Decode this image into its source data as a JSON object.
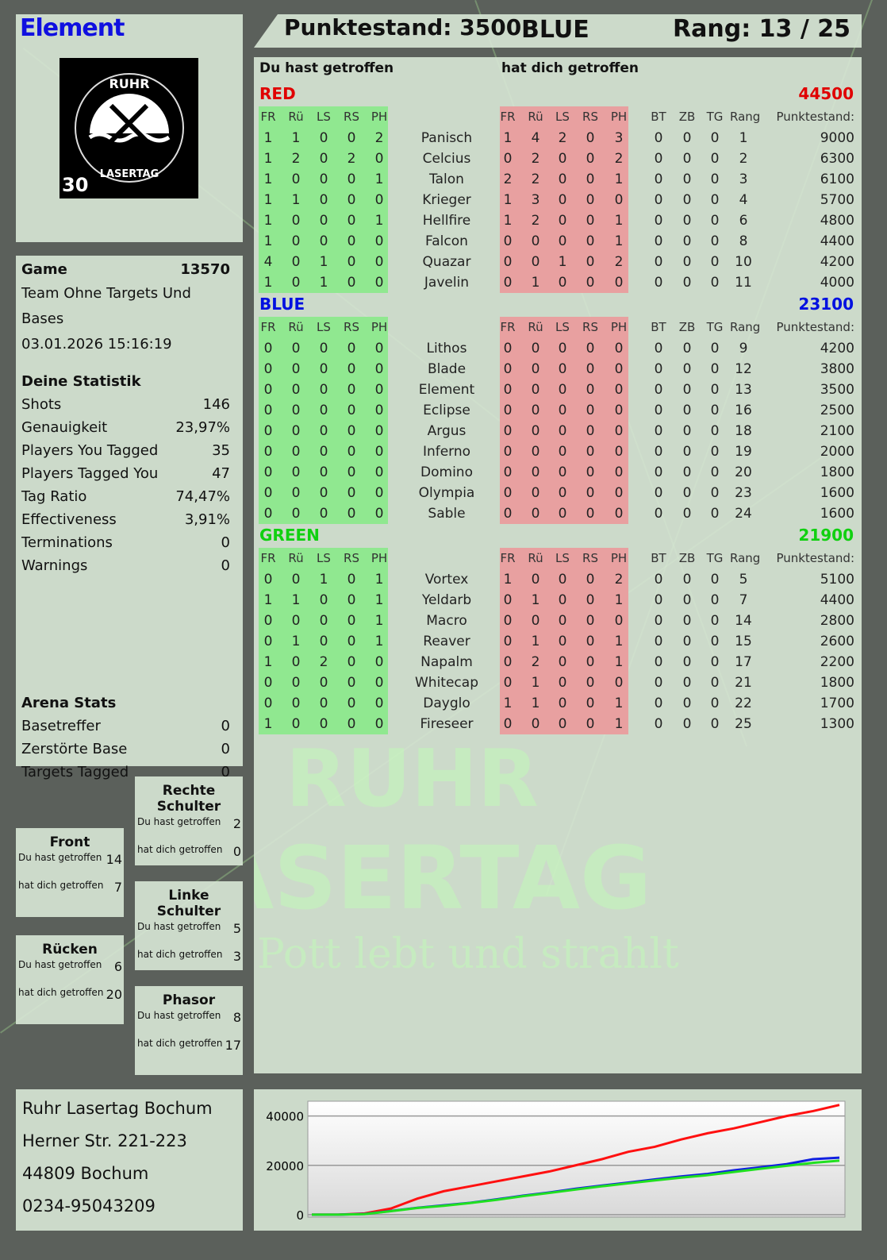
{
  "header": {
    "player_name": "Element",
    "score_label": "Punktestand: 3500",
    "team": "BLUE",
    "rank_label": "Rang: 13 / 25"
  },
  "logo": {
    "top_text": "RUHR",
    "bottom_text": "LASERTAG",
    "badge": "30"
  },
  "watermark": {
    "line1": "RUHR",
    "line2": "LASERTAG",
    "slogan": "Der Pott lebt und strahlt"
  },
  "game": {
    "label": "Game",
    "id": "13570",
    "mode": "Team Ohne Targets Und Bases",
    "datetime": "03.01.2026 15:16:19"
  },
  "stats": {
    "title": "Deine Statistik",
    "items": [
      [
        "Shots",
        "146"
      ],
      [
        "Genauigkeit",
        "23,97%"
      ],
      [
        "Players You Tagged",
        "35"
      ],
      [
        "Players Tagged You",
        "47"
      ],
      [
        "Tag Ratio",
        "74,47%"
      ],
      [
        "Effectiveness",
        "3,91%"
      ],
      [
        "Terminations",
        "0"
      ],
      [
        "Warnings",
        "0"
      ]
    ]
  },
  "arena": {
    "title": "Arena Stats",
    "items": [
      [
        "Basetreffer",
        "0"
      ],
      [
        "Zerstörte Base",
        "0"
      ],
      [
        "Targets Tagged",
        "0"
      ]
    ]
  },
  "zones": [
    {
      "title": "Rechte Schulter",
      "hit_label": "Du hast getroffen",
      "hit": "2",
      "got_label": "hat dich getroffen",
      "got": "0"
    },
    {
      "title": "Front",
      "hit_label": "Du hast getroffen",
      "hit": "14",
      "got_label": "hat dich getroffen",
      "got": "7"
    },
    {
      "title": "Linke Schulter",
      "hit_label": "Du hast getroffen",
      "hit": "5",
      "got_label": "hat dich getroffen",
      "got": "3"
    },
    {
      "title": "Rücken",
      "hit_label": "Du hast getroffen",
      "hit": "6",
      "got_label": "hat dich getroffen",
      "got": "20"
    },
    {
      "title": "Phasor",
      "hit_label": "Du hast getroffen",
      "hit": "8",
      "got_label": "hat dich getroffen",
      "got": "17"
    }
  ],
  "address": [
    "Ruhr Lasertag Bochum",
    "Herner Str. 221-223",
    "44809 Bochum",
    "0234-95043209"
  ],
  "table": {
    "hit_title": "Du hast getroffen",
    "got_title": "hat dich getroffen",
    "columns": [
      "FR",
      "Rü",
      "LS",
      "RS",
      "PH",
      "",
      "FR",
      "Rü",
      "LS",
      "RS",
      "PH",
      "BT",
      "ZB",
      "TG",
      "Rang",
      "Punktestand:"
    ],
    "teams": [
      {
        "name": "RED",
        "color": "#e00000",
        "total": "44500",
        "rows": [
          [
            "1",
            "1",
            "0",
            "0",
            "2",
            "Panisch",
            "1",
            "4",
            "2",
            "0",
            "3",
            "0",
            "0",
            "0",
            "1",
            "9000"
          ],
          [
            "1",
            "2",
            "0",
            "2",
            "0",
            "Celcius",
            "0",
            "2",
            "0",
            "0",
            "2",
            "0",
            "0",
            "0",
            "2",
            "6300"
          ],
          [
            "1",
            "0",
            "0",
            "0",
            "1",
            "Talon",
            "2",
            "2",
            "0",
            "0",
            "1",
            "0",
            "0",
            "0",
            "3",
            "6100"
          ],
          [
            "1",
            "1",
            "0",
            "0",
            "0",
            "Krieger",
            "1",
            "3",
            "0",
            "0",
            "0",
            "0",
            "0",
            "0",
            "4",
            "5700"
          ],
          [
            "1",
            "0",
            "0",
            "0",
            "1",
            "Hellfire",
            "1",
            "2",
            "0",
            "0",
            "1",
            "0",
            "0",
            "0",
            "6",
            "4800"
          ],
          [
            "1",
            "0",
            "0",
            "0",
            "0",
            "Falcon",
            "0",
            "0",
            "0",
            "0",
            "1",
            "0",
            "0",
            "0",
            "8",
            "4400"
          ],
          [
            "4",
            "0",
            "1",
            "0",
            "0",
            "Quazar",
            "0",
            "0",
            "1",
            "0",
            "2",
            "0",
            "0",
            "0",
            "10",
            "4200"
          ],
          [
            "1",
            "0",
            "1",
            "0",
            "0",
            "Javelin",
            "0",
            "1",
            "0",
            "0",
            "0",
            "0",
            "0",
            "0",
            "11",
            "4000"
          ]
        ]
      },
      {
        "name": "BLUE",
        "color": "#0010e0",
        "total": "23100",
        "rows": [
          [
            "0",
            "0",
            "0",
            "0",
            "0",
            "Lithos",
            "0",
            "0",
            "0",
            "0",
            "0",
            "0",
            "0",
            "0",
            "9",
            "4200"
          ],
          [
            "0",
            "0",
            "0",
            "0",
            "0",
            "Blade",
            "0",
            "0",
            "0",
            "0",
            "0",
            "0",
            "0",
            "0",
            "12",
            "3800"
          ],
          [
            "0",
            "0",
            "0",
            "0",
            "0",
            "Element",
            "0",
            "0",
            "0",
            "0",
            "0",
            "0",
            "0",
            "0",
            "13",
            "3500"
          ],
          [
            "0",
            "0",
            "0",
            "0",
            "0",
            "Eclipse",
            "0",
            "0",
            "0",
            "0",
            "0",
            "0",
            "0",
            "0",
            "16",
            "2500"
          ],
          [
            "0",
            "0",
            "0",
            "0",
            "0",
            "Argus",
            "0",
            "0",
            "0",
            "0",
            "0",
            "0",
            "0",
            "0",
            "18",
            "2100"
          ],
          [
            "0",
            "0",
            "0",
            "0",
            "0",
            "Inferno",
            "0",
            "0",
            "0",
            "0",
            "0",
            "0",
            "0",
            "0",
            "19",
            "2000"
          ],
          [
            "0",
            "0",
            "0",
            "0",
            "0",
            "Domino",
            "0",
            "0",
            "0",
            "0",
            "0",
            "0",
            "0",
            "0",
            "20",
            "1800"
          ],
          [
            "0",
            "0",
            "0",
            "0",
            "0",
            "Olympia",
            "0",
            "0",
            "0",
            "0",
            "0",
            "0",
            "0",
            "0",
            "23",
            "1600"
          ],
          [
            "0",
            "0",
            "0",
            "0",
            "0",
            "Sable",
            "0",
            "0",
            "0",
            "0",
            "0",
            "0",
            "0",
            "0",
            "24",
            "1600"
          ]
        ]
      },
      {
        "name": "GREEN",
        "color": "#10d010",
        "total": "21900",
        "rows": [
          [
            "0",
            "0",
            "1",
            "0",
            "1",
            "Vortex",
            "1",
            "0",
            "0",
            "0",
            "2",
            "0",
            "0",
            "0",
            "5",
            "5100"
          ],
          [
            "1",
            "1",
            "0",
            "0",
            "1",
            "Yeldarb",
            "0",
            "1",
            "0",
            "0",
            "1",
            "0",
            "0",
            "0",
            "7",
            "4400"
          ],
          [
            "0",
            "0",
            "0",
            "0",
            "1",
            "Macro",
            "0",
            "0",
            "0",
            "0",
            "0",
            "0",
            "0",
            "0",
            "14",
            "2800"
          ],
          [
            "0",
            "1",
            "0",
            "0",
            "1",
            "Reaver",
            "0",
            "1",
            "0",
            "0",
            "1",
            "0",
            "0",
            "0",
            "15",
            "2600"
          ],
          [
            "1",
            "0",
            "2",
            "0",
            "0",
            "Napalm",
            "0",
            "2",
            "0",
            "0",
            "1",
            "0",
            "0",
            "0",
            "17",
            "2200"
          ],
          [
            "0",
            "0",
            "0",
            "0",
            "0",
            "Whitecap",
            "0",
            "1",
            "0",
            "0",
            "0",
            "0",
            "0",
            "0",
            "21",
            "1800"
          ],
          [
            "0",
            "0",
            "0",
            "0",
            "0",
            "Dayglo",
            "1",
            "1",
            "0",
            "0",
            "1",
            "0",
            "0",
            "0",
            "22",
            "1700"
          ],
          [
            "1",
            "0",
            "0",
            "0",
            "0",
            "Fireseer",
            "0",
            "0",
            "0",
            "0",
            "1",
            "0",
            "0",
            "0",
            "25",
            "1300"
          ]
        ]
      }
    ]
  },
  "colors": {
    "hit_block": "#90e890",
    "got_block": "#e8a0a0"
  },
  "chart_data": {
    "type": "line",
    "ylim": [
      -1000,
      46000
    ],
    "yticks": [
      0,
      20000,
      40000
    ],
    "grid": true,
    "x": [
      0,
      1,
      2,
      3,
      4,
      5,
      6,
      7,
      8,
      9,
      10,
      11,
      12,
      13,
      14,
      15,
      16,
      17,
      18,
      19,
      20
    ],
    "series": [
      {
        "color": "#ff1010",
        "values": [
          0,
          0,
          500,
          2500,
          6500,
          9500,
          11500,
          13500,
          15500,
          17500,
          20000,
          22500,
          25500,
          27500,
          30500,
          33000,
          35000,
          37500,
          40000,
          42000,
          44500
        ]
      },
      {
        "color": "#1020e0",
        "values": [
          0,
          0,
          300,
          1500,
          2800,
          3800,
          4800,
          6200,
          7700,
          9000,
          10500,
          11800,
          13000,
          14300,
          15500,
          16500,
          18000,
          19200,
          20500,
          22500,
          23100
        ]
      },
      {
        "color": "#20e020",
        "values": [
          0,
          0,
          200,
          1400,
          2700,
          3600,
          4700,
          6000,
          7500,
          8800,
          10200,
          11500,
          12700,
          13900,
          15000,
          16000,
          17300,
          18600,
          19800,
          21000,
          21900
        ]
      }
    ]
  }
}
